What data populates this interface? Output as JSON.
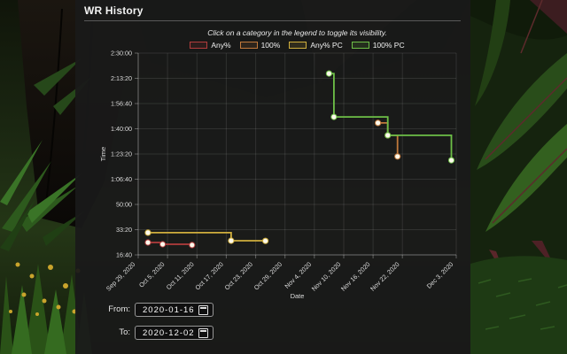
{
  "header": {
    "title": "WR History"
  },
  "chart": {
    "subtitle": "Click on a category in the legend to toggle its visibility."
  },
  "chart_data": {
    "type": "line",
    "stepped": "after",
    "grid": true,
    "legend_position": "top",
    "title": "WR History",
    "xlabel": "Date",
    "ylabel": "Time",
    "x_start_date": "2020-09-29",
    "x_span_days": 65,
    "x_axis": {
      "ticks": [
        {
          "date": "2020-09-29",
          "label": "Sep 29, 2020"
        },
        {
          "date": "2020-10-05",
          "label": "Oct 5, 2020"
        },
        {
          "date": "2020-10-11",
          "label": "Oct 11, 2020"
        },
        {
          "date": "2020-10-17",
          "label": "Oct 17, 2020"
        },
        {
          "date": "2020-10-23",
          "label": "Oct 23, 2020"
        },
        {
          "date": "2020-10-29",
          "label": "Oct 29, 2020"
        },
        {
          "date": "2020-11-04",
          "label": "Nov 4, 2020"
        },
        {
          "date": "2020-11-10",
          "label": "Nov 10, 2020"
        },
        {
          "date": "2020-11-16",
          "label": "Nov 16, 2020"
        },
        {
          "date": "2020-11-22",
          "label": "Nov 22, 2020"
        },
        {
          "date": "2020-12-03",
          "label": "Dec 3, 2020"
        }
      ]
    },
    "y_axis": {
      "min": 1000,
      "max": 9000,
      "ticks": [
        {
          "seconds": 9000,
          "label": "2:30:00"
        },
        {
          "seconds": 8000,
          "label": "2:13:20"
        },
        {
          "seconds": 7000,
          "label": "1:56:40"
        },
        {
          "seconds": 6000,
          "label": "1:40:00"
        },
        {
          "seconds": 5000,
          "label": "1:23:20"
        },
        {
          "seconds": 4000,
          "label": "1:06:40"
        },
        {
          "seconds": 3000,
          "label": "50:00"
        },
        {
          "seconds": 2000,
          "label": "33:20"
        },
        {
          "seconds": 1000,
          "label": "16:40"
        }
      ]
    },
    "series": [
      {
        "name": "Any%",
        "color": "#b23c3c",
        "points": [
          {
            "date": "2020-10-01",
            "seconds": 1490,
            "time": "24:50"
          },
          {
            "date": "2020-10-04",
            "seconds": 1420,
            "time": "23:40"
          },
          {
            "date": "2020-10-10",
            "seconds": 1390,
            "time": "23:10"
          }
        ]
      },
      {
        "name": "100%",
        "color": "#c1793b",
        "points": [
          {
            "date": "2020-11-17",
            "seconds": 6230,
            "time": "1:43:50"
          },
          {
            "date": "2020-11-19",
            "seconds": 5740,
            "time": "1:35:40"
          },
          {
            "date": "2020-11-21",
            "seconds": 4900,
            "time": "1:21:40"
          }
        ]
      },
      {
        "name": "Any% PC",
        "color": "#cfae3d",
        "points": [
          {
            "date": "2020-10-01",
            "seconds": 1880,
            "time": "31:20"
          },
          {
            "date": "2020-10-18",
            "seconds": 1560,
            "time": "26:00"
          },
          {
            "date": "2020-10-25",
            "seconds": 1555,
            "time": "25:55"
          }
        ]
      },
      {
        "name": "100% PC",
        "color": "#6dbf47",
        "points": [
          {
            "date": "2020-11-07",
            "seconds": 8190,
            "time": "2:16:30"
          },
          {
            "date": "2020-11-08",
            "seconds": 6470,
            "time": "1:47:50"
          },
          {
            "date": "2020-11-19",
            "seconds": 5740,
            "time": "1:35:40"
          },
          {
            "date": "2020-12-02",
            "seconds": 4750,
            "time": "1:19:10"
          }
        ]
      }
    ]
  },
  "filters": {
    "from_label": "From:",
    "from_value": "2020-01-16",
    "to_label": "To:",
    "to_value": "2020-12-02"
  },
  "colors": {
    "panel_bg": "rgba(25,25,25,0.94)",
    "point_fill": "#fcf9ec",
    "grid_line": "rgba(255,255,255,0.10)",
    "axis_line": "rgba(255,255,255,0.30)",
    "tick_text": "#dcdcdc"
  }
}
